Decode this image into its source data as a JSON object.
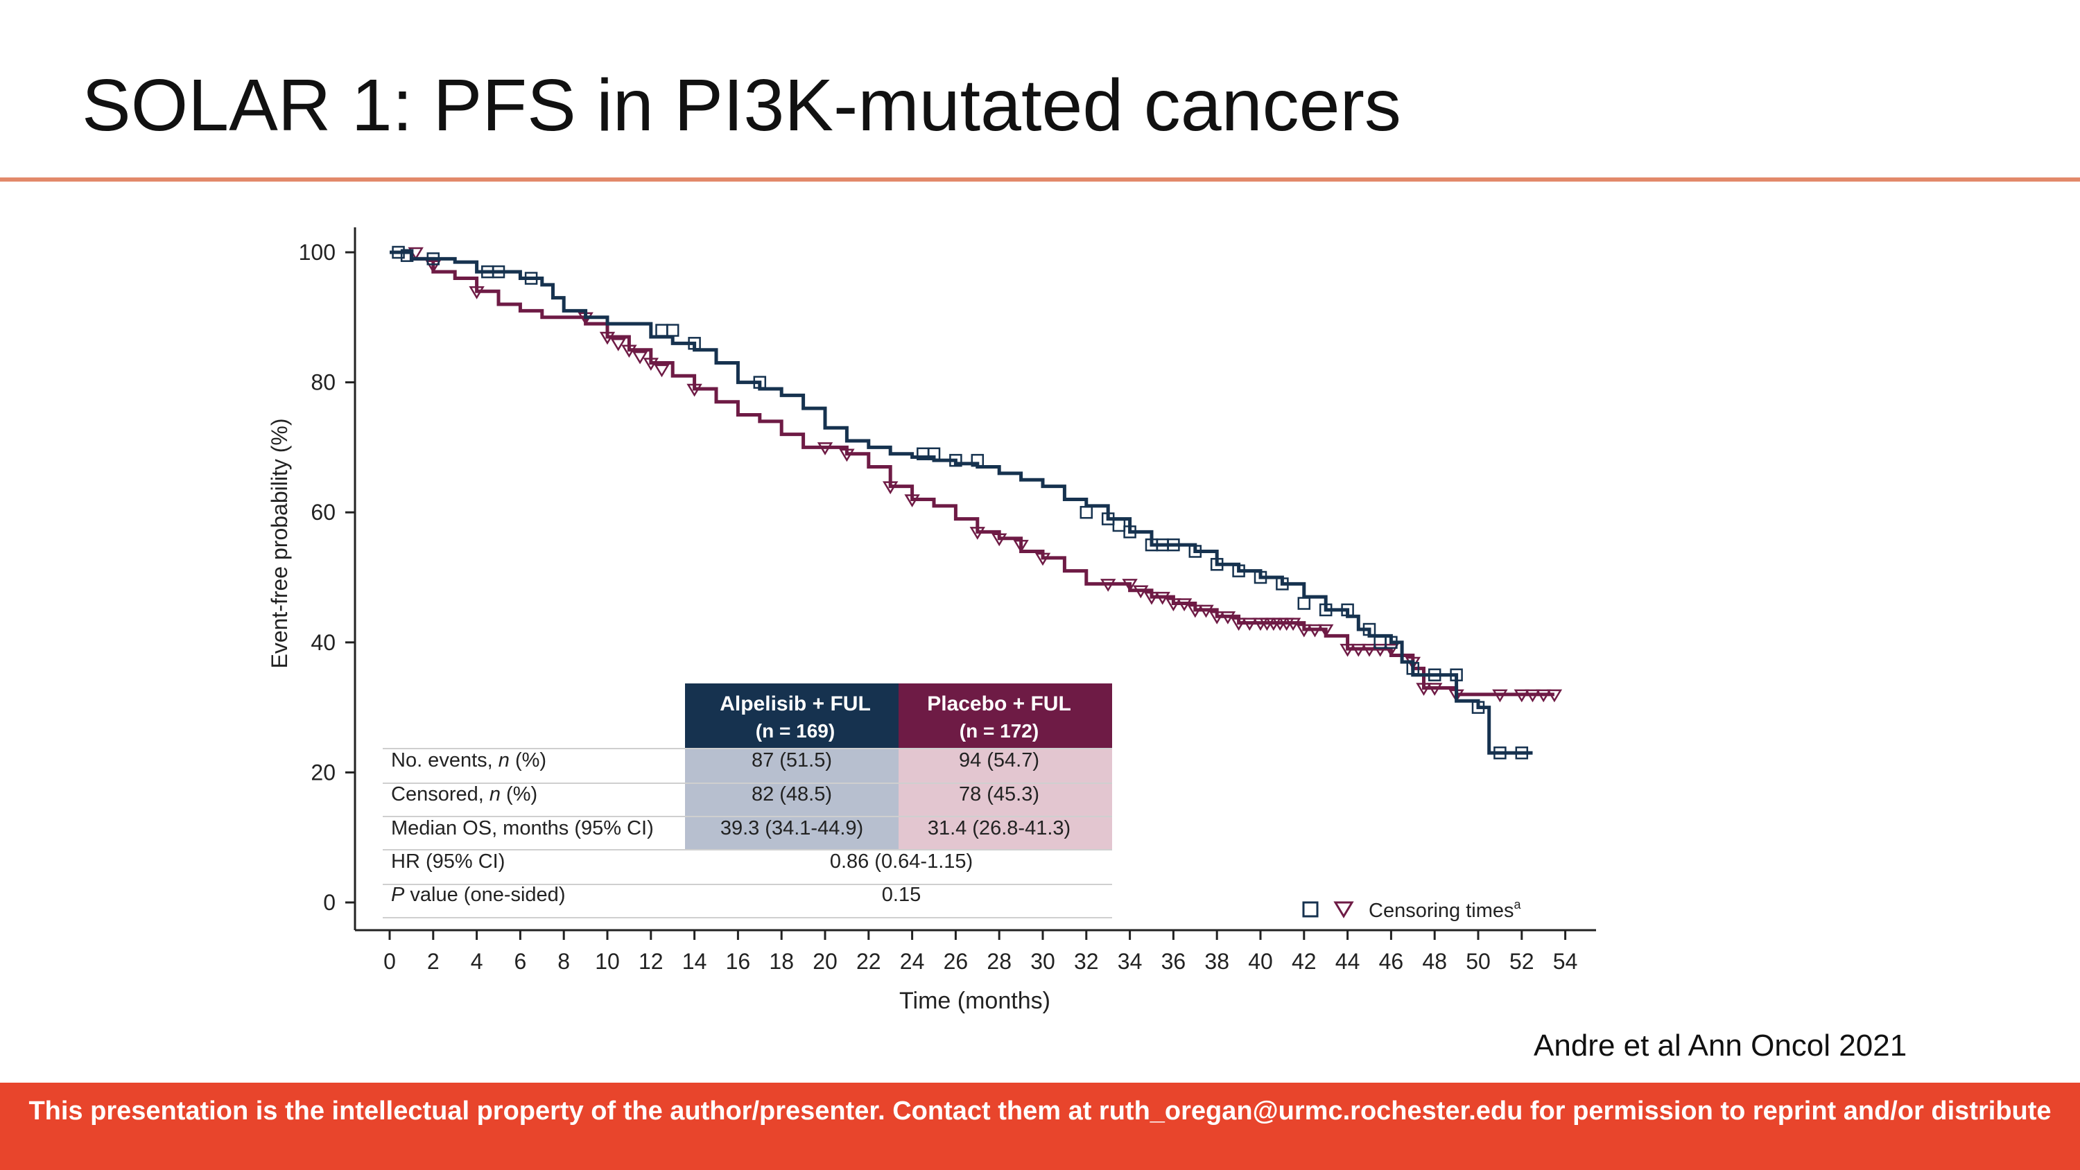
{
  "slide": {
    "title": "SOLAR 1:  PFS in PI3K-mutated cancers",
    "citation": "Andre et al Ann Oncol 2021",
    "footer": "This presentation is the intellectual property of the author/presenter. Contact them at ruth_oregan@urmc.rochester.edu for permission to reprint and/or distribute"
  },
  "colors": {
    "alpelisib": "#16324f",
    "placebo": "#6e1b45",
    "alp_bg": "#b7bfcf",
    "pla_bg": "#e3c6d0",
    "rule": "#e2896a",
    "footer_bg": "#e8452c"
  },
  "chart_data": {
    "type": "line",
    "subtype": "kaplan-meier",
    "xlabel": "Time (months)",
    "ylabel": "Event-free probability (%)",
    "xlim": [
      0,
      54
    ],
    "ylim": [
      0,
      100
    ],
    "x_ticks": [
      0,
      2,
      4,
      6,
      8,
      10,
      12,
      14,
      16,
      18,
      20,
      22,
      24,
      26,
      28,
      30,
      32,
      34,
      36,
      38,
      40,
      42,
      44,
      46,
      48,
      50,
      52,
      54
    ],
    "y_ticks": [
      0,
      20,
      40,
      60,
      80,
      100
    ],
    "legend": {
      "label": "Censoring times",
      "superscript": "a",
      "position": "bottom-right"
    },
    "series": [
      {
        "name": "Alpelisib + FUL",
        "marker": "square",
        "steps": [
          [
            0,
            100
          ],
          [
            1,
            99
          ],
          [
            3,
            98.5
          ],
          [
            4,
            97
          ],
          [
            6,
            96
          ],
          [
            7,
            95
          ],
          [
            7.5,
            93
          ],
          [
            8,
            91
          ],
          [
            9,
            90
          ],
          [
            10,
            89
          ],
          [
            12,
            87
          ],
          [
            13,
            86
          ],
          [
            14,
            85
          ],
          [
            15,
            83
          ],
          [
            16,
            80
          ],
          [
            17,
            79
          ],
          [
            18,
            78
          ],
          [
            19,
            76
          ],
          [
            20,
            73
          ],
          [
            21,
            71
          ],
          [
            22,
            70
          ],
          [
            23,
            69
          ],
          [
            24,
            68.5
          ],
          [
            25,
            68
          ],
          [
            26,
            67.5
          ],
          [
            27,
            67
          ],
          [
            28,
            66
          ],
          [
            29,
            65
          ],
          [
            30,
            64
          ],
          [
            31,
            62
          ],
          [
            32,
            61
          ],
          [
            33,
            59
          ],
          [
            34,
            57
          ],
          [
            35,
            55
          ],
          [
            37,
            54
          ],
          [
            38,
            52
          ],
          [
            39,
            51
          ],
          [
            40,
            50
          ],
          [
            41,
            49
          ],
          [
            42,
            47
          ],
          [
            43,
            45
          ],
          [
            44,
            44
          ],
          [
            44.5,
            42
          ],
          [
            45,
            41
          ],
          [
            46,
            40
          ],
          [
            46.5,
            37
          ],
          [
            47,
            35
          ],
          [
            49,
            31
          ],
          [
            50,
            30
          ],
          [
            50.5,
            23
          ],
          [
            52.5,
            23
          ]
        ],
        "censored": [
          [
            0.4,
            100
          ],
          [
            0.8,
            99.5
          ],
          [
            2,
            99
          ],
          [
            4.5,
            97
          ],
          [
            5,
            97
          ],
          [
            6.5,
            96
          ],
          [
            12.5,
            88
          ],
          [
            13,
            88
          ],
          [
            14,
            86
          ],
          [
            17,
            80
          ],
          [
            24.5,
            69
          ],
          [
            25,
            69
          ],
          [
            26,
            68
          ],
          [
            27,
            68
          ],
          [
            32,
            60
          ],
          [
            33,
            59
          ],
          [
            33.5,
            58
          ],
          [
            34,
            57
          ],
          [
            35,
            55
          ],
          [
            35.5,
            55
          ],
          [
            36,
            55
          ],
          [
            37,
            54
          ],
          [
            38,
            52
          ],
          [
            39,
            51
          ],
          [
            40,
            50
          ],
          [
            41,
            49
          ],
          [
            42,
            46
          ],
          [
            43,
            45
          ],
          [
            44,
            45
          ],
          [
            45,
            42
          ],
          [
            45.5,
            40
          ],
          [
            46,
            40
          ],
          [
            47,
            36
          ],
          [
            48,
            35
          ],
          [
            49,
            35
          ],
          [
            50,
            30
          ],
          [
            51,
            23
          ],
          [
            52,
            23
          ]
        ]
      },
      {
        "name": "Placebo + FUL",
        "marker": "triangle",
        "steps": [
          [
            0,
            100
          ],
          [
            1,
            99
          ],
          [
            2,
            97
          ],
          [
            3,
            96
          ],
          [
            4,
            94
          ],
          [
            5,
            92
          ],
          [
            6,
            91
          ],
          [
            7,
            90
          ],
          [
            9,
            89
          ],
          [
            10,
            87
          ],
          [
            11,
            85
          ],
          [
            12,
            83
          ],
          [
            13,
            81
          ],
          [
            14,
            79
          ],
          [
            15,
            77
          ],
          [
            16,
            75
          ],
          [
            17,
            74
          ],
          [
            18,
            72
          ],
          [
            19,
            70
          ],
          [
            21,
            69
          ],
          [
            22,
            67
          ],
          [
            23,
            64
          ],
          [
            24,
            62
          ],
          [
            25,
            61
          ],
          [
            26,
            59
          ],
          [
            27,
            57
          ],
          [
            28,
            56
          ],
          [
            29,
            54
          ],
          [
            30,
            53
          ],
          [
            31,
            51
          ],
          [
            32,
            49
          ],
          [
            34,
            48
          ],
          [
            35,
            47
          ],
          [
            36,
            46
          ],
          [
            37,
            45
          ],
          [
            38,
            44
          ],
          [
            39,
            43
          ],
          [
            42,
            42
          ],
          [
            43,
            41
          ],
          [
            44,
            39
          ],
          [
            46,
            38
          ],
          [
            47,
            36
          ],
          [
            47.5,
            33
          ],
          [
            49,
            32
          ],
          [
            53.5,
            32
          ]
        ],
        "censored": [
          [
            1.2,
            100
          ],
          [
            2,
            98
          ],
          [
            4,
            94
          ],
          [
            9,
            90
          ],
          [
            10,
            87
          ],
          [
            10.5,
            86
          ],
          [
            11,
            85
          ],
          [
            11.5,
            84
          ],
          [
            12,
            83
          ],
          [
            12.5,
            82
          ],
          [
            14,
            79
          ],
          [
            20,
            70
          ],
          [
            21,
            69
          ],
          [
            23,
            64
          ],
          [
            24,
            62
          ],
          [
            27,
            57
          ],
          [
            28,
            56
          ],
          [
            29,
            55
          ],
          [
            30,
            53
          ],
          [
            33,
            49
          ],
          [
            34,
            49
          ],
          [
            34.5,
            48
          ],
          [
            35,
            47
          ],
          [
            35.5,
            47
          ],
          [
            36,
            46
          ],
          [
            36.5,
            46
          ],
          [
            37,
            45
          ],
          [
            37.5,
            45
          ],
          [
            38,
            44
          ],
          [
            38.5,
            44
          ],
          [
            39,
            43
          ],
          [
            39.5,
            43
          ],
          [
            40,
            43
          ],
          [
            40.3,
            43
          ],
          [
            40.6,
            43
          ],
          [
            40.9,
            43
          ],
          [
            41.2,
            43
          ],
          [
            41.5,
            43
          ],
          [
            42,
            42
          ],
          [
            42.5,
            42
          ],
          [
            43,
            42
          ],
          [
            44,
            39
          ],
          [
            44.5,
            39
          ],
          [
            45,
            39
          ],
          [
            45.5,
            39
          ],
          [
            46,
            39
          ],
          [
            47,
            37
          ],
          [
            47.5,
            33
          ],
          [
            48,
            33
          ],
          [
            49,
            32
          ],
          [
            51,
            32
          ],
          [
            52,
            32
          ],
          [
            52.5,
            32
          ],
          [
            53,
            32
          ],
          [
            53.5,
            32
          ]
        ]
      }
    ],
    "table": {
      "columns": [
        "Alpelisib + FUL",
        "(n = 169)",
        "Placebo + FUL",
        "(n = 172)"
      ],
      "rows": [
        {
          "label_pre": "No. events, ",
          "label_italic": "n",
          "label_post": " (%)",
          "alp": "87 (51.5)",
          "pla": "94 (54.7)"
        },
        {
          "label_pre": "Censored, ",
          "label_italic": "n",
          "label_post": " (%)",
          "alp": "82 (48.5)",
          "pla": "78 (45.3)"
        },
        {
          "label_pre": "Median OS, months (95% CI)",
          "label_italic": "",
          "label_post": "",
          "alp": "39.3 (34.1-44.9)",
          "pla": "31.4 (26.8-41.3)"
        },
        {
          "label_pre": "HR (95% CI)",
          "label_italic": "",
          "label_post": "",
          "value": "0.86 (0.64-1.15)"
        },
        {
          "label_pre": "",
          "label_italic": "P",
          "label_post": " value (one-sided)",
          "value": "0.15"
        }
      ]
    }
  }
}
